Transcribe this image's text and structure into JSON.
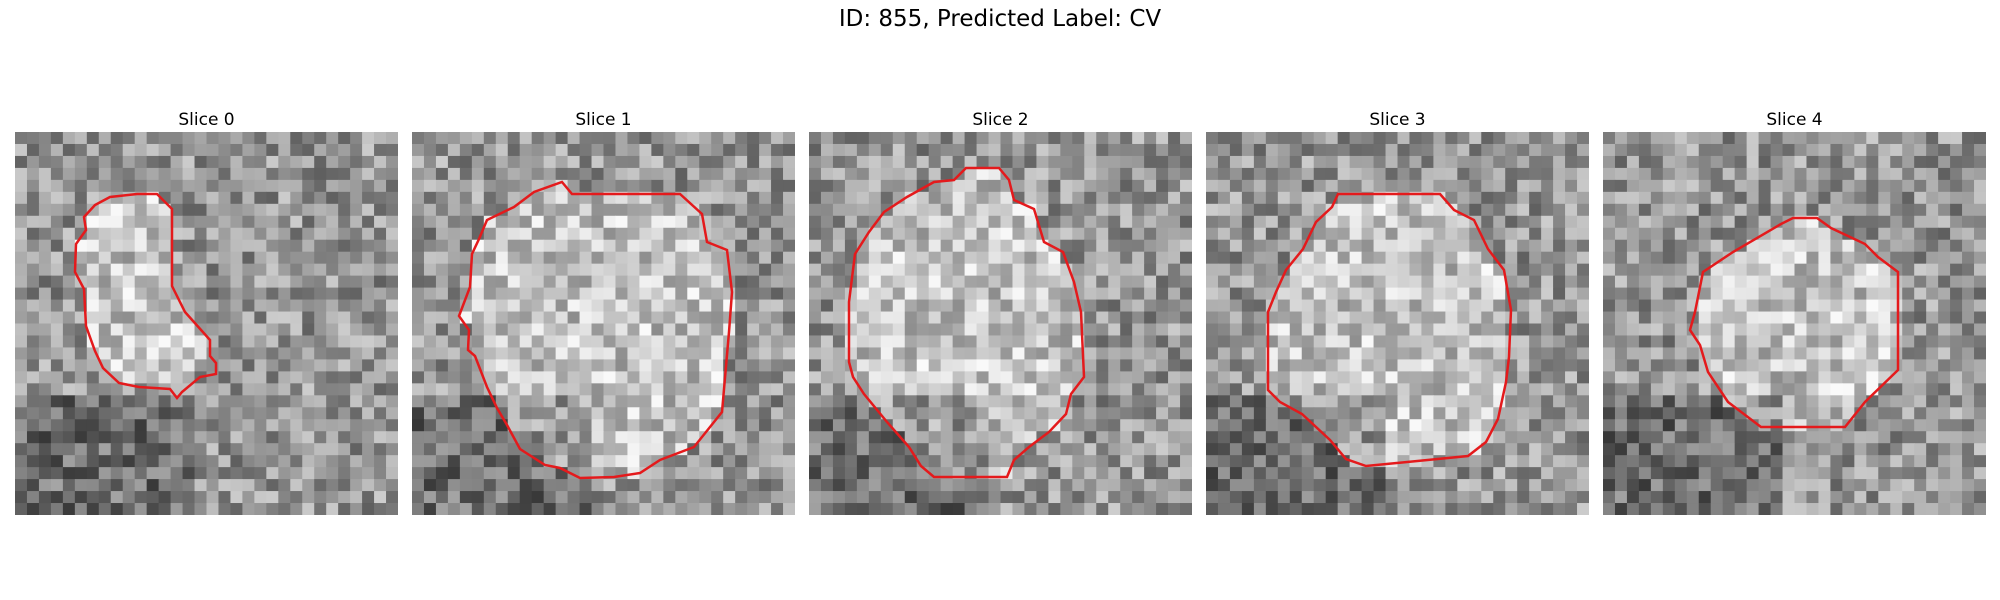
{
  "figure": {
    "title": "ID: 855, Predicted Label: CV"
  },
  "slices": [
    {
      "label": "Slice 0"
    },
    {
      "label": "Slice 1"
    },
    {
      "label": "Slice 2"
    },
    {
      "label": "Slice 3"
    },
    {
      "label": "Slice 4"
    }
  ],
  "colors": {
    "contour": "#e41a1c",
    "background": "#ffffff"
  }
}
